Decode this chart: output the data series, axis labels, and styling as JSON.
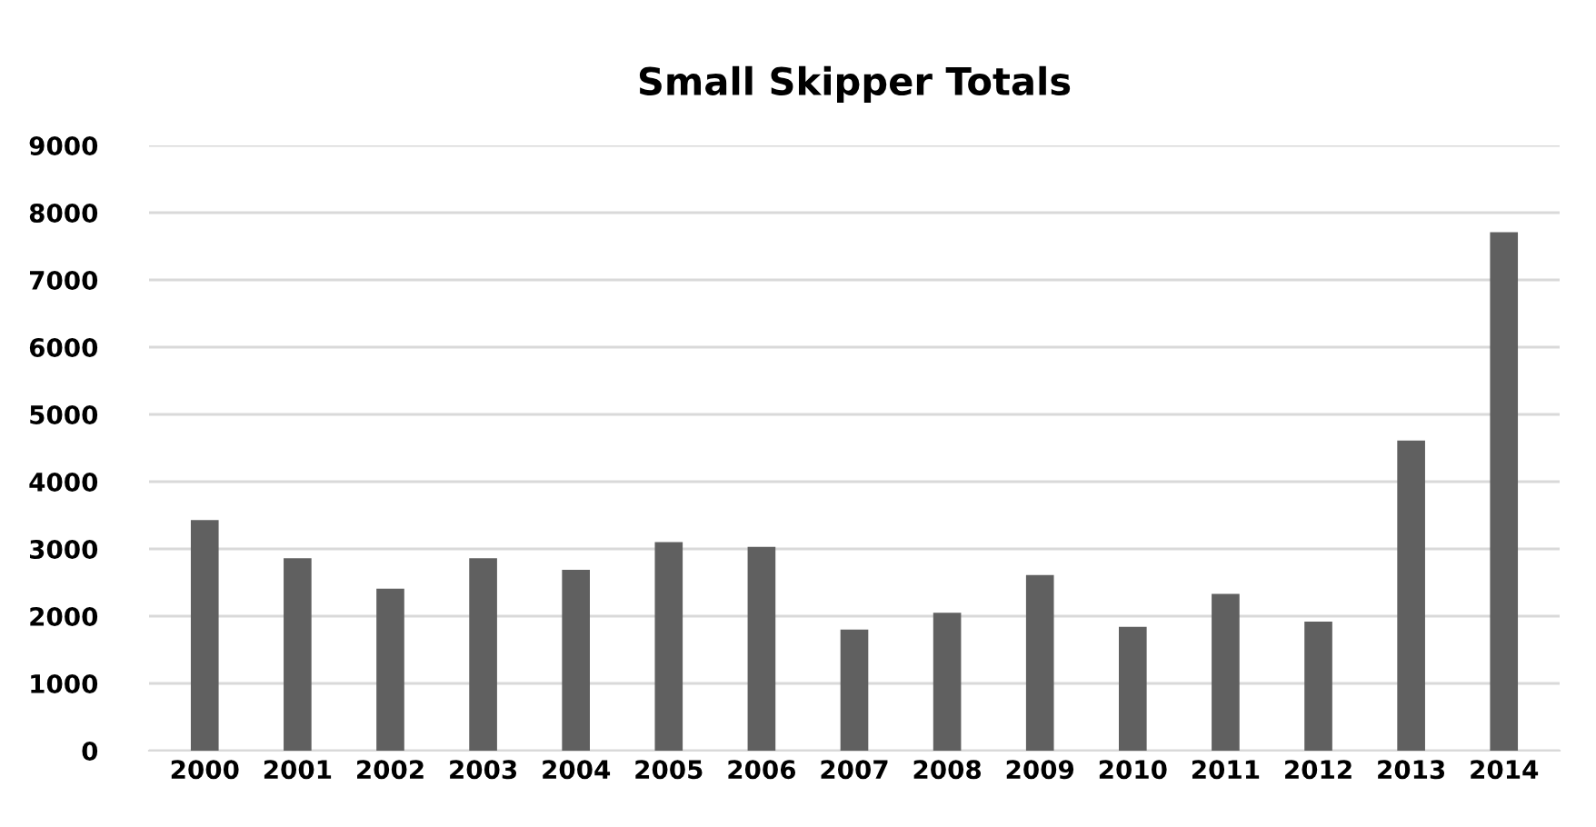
{
  "chart_data": {
    "type": "bar",
    "title": "Small Skipper Totals",
    "categories": [
      "2000",
      "2001",
      "2002",
      "2003",
      "2004",
      "2005",
      "2006",
      "2007",
      "2008",
      "2009",
      "2010",
      "2011",
      "2012",
      "2013",
      "2014"
    ],
    "values": [
      3430,
      2860,
      2410,
      2860,
      2690,
      3100,
      3030,
      1800,
      2050,
      2610,
      1840,
      2330,
      1920,
      4610,
      7710
    ],
    "color": "#606060",
    "ylim": [
      0,
      9000
    ],
    "yticks": [
      0,
      1000,
      2000,
      3000,
      4000,
      5000,
      6000,
      7000,
      8000,
      9000
    ],
    "grid": "y"
  }
}
